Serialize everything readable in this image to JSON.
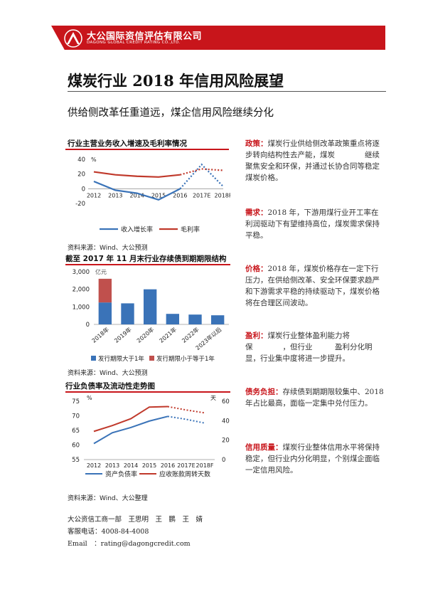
{
  "header": {
    "org_name_cn": "大公国际资信评估有限公司",
    "org_name_en": "DAGONG GLOBAL CREDIT RATING CO.,LTD.",
    "brand_color": "#c8151b"
  },
  "title": "煤炭行业 2018 年信用风险展望",
  "subtitle": "供给侧改革任重道远，煤企信用风险继续分化",
  "sections": {
    "chart1_title": "行业主营业务收入增速及毛利率情况",
    "chart1_source": "资料来源：Wind、大公预测",
    "chart2_title": "截至 2017 年 11 月末行业存续债到期期限结构",
    "chart2_source": "资料来源：Wind、大公预测",
    "chart3_title": "行业负债率及流动性走势图",
    "chart3_source": "资料来源：Wind、大公整理"
  },
  "chart_data": [
    {
      "type": "line",
      "categories": [
        "2012",
        "2013",
        "2014",
        "2015",
        "2016",
        "2017E",
        "2018F"
      ],
      "y_unit": "%",
      "ylim": [
        -20,
        40
      ],
      "yticks": [
        -20,
        0,
        20,
        40
      ],
      "forecast_from": "2016",
      "series": [
        {
          "name": "收入增长率",
          "color": "#3a73b8",
          "values": [
            10,
            -2,
            -6,
            -15,
            0,
            33,
            3
          ]
        },
        {
          "name": "毛利率",
          "color": "#c0392b",
          "values": [
            23,
            19,
            17,
            16,
            19,
            27,
            25
          ]
        }
      ],
      "legend": "bottom"
    },
    {
      "type": "bar",
      "categories": [
        "2018年",
        "2019年",
        "2020年",
        "2021年",
        "2022年",
        "2023年以后"
      ],
      "y_unit": "亿元",
      "ylim": [
        0,
        3000
      ],
      "yticks": [
        0,
        1000,
        2000,
        3000
      ],
      "ytick_labels": [
        "0",
        "1,000",
        "2,000",
        "3,000"
      ],
      "series": [
        {
          "name": "发行期限大于1年",
          "color": "#3a73b8",
          "values": [
            1250,
            1200,
            2000,
            600,
            560,
            520
          ]
        },
        {
          "name": "发行期限小于等于1年",
          "color": "#c0504d",
          "values": [
            1350,
            0,
            0,
            0,
            0,
            0
          ]
        }
      ],
      "stacked": true,
      "legend": "bottom"
    },
    {
      "type": "line",
      "categories": [
        "2012",
        "2013",
        "2014",
        "2015",
        "2016",
        "2017E",
        "2018F"
      ],
      "y_unit_left": "%",
      "y_unit_right": "天",
      "ylim_left": [
        55,
        75
      ],
      "yticks_left": [
        55,
        60,
        65,
        70,
        75
      ],
      "ylim_right": [
        0,
        60
      ],
      "yticks_right": [
        0,
        20,
        40,
        60
      ],
      "forecast_from": "2016",
      "series": [
        {
          "name": "资产负债率",
          "axis": "left",
          "color": "#3a73b8",
          "values": [
            60.5,
            64.2,
            66,
            68.2,
            69.8,
            68.8,
            67.5
          ]
        },
        {
          "name": "应收账款周转天数",
          "axis": "right",
          "color": "#c0392b",
          "values": [
            29,
            35,
            42,
            54,
            54.5,
            51,
            48
          ]
        }
      ],
      "legend": "bottom"
    }
  ],
  "paragraphs": [
    {
      "label": "政策：",
      "text": "煤炭行业供给侧改革政策重点将逐步转向结构性去产能，煤炭　　　　继续聚焦安全和环保，并通过长协合同等稳定煤炭价格。"
    },
    {
      "label": "需求：",
      "text": "2018 年，下游用煤行业开工率在利润驱动下有望维持高位，煤炭需求保持平稳。"
    },
    {
      "label": "价格：",
      "text": "2018 年，煤炭价格存在一定下行压力，在供给侧改革、安全环保要求趋严和下游需求平稳的持续驱动下，煤炭价格将在合理区间波动。"
    },
    {
      "label": "盈利：",
      "text": "煤炭行业整体盈利能力将保　　　　，但行业　　　盈利分化明显，行业集中度将进一步提升。"
    },
    {
      "label": "债务负担：",
      "text": "存续债到期期限较集中、2018 年占比最高，面临一定集中兑付压力。"
    },
    {
      "label": "信用质量：",
      "text": "煤炭行业整体信用水平将保持稳定，但行业内分化明显，个别煤企面临一定信用风险。"
    }
  ],
  "contact": {
    "team": "大公资信工商一部　王思明　王　鹏　王　婧",
    "phone": "客服电话：4008-84-4008",
    "email": "Email　：rating@dagongcredit.com"
  }
}
